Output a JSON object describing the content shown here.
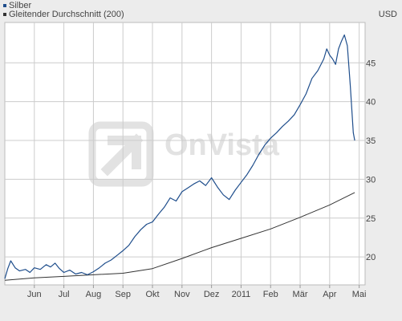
{
  "chart_data": {
    "type": "line",
    "currency": "USD",
    "watermark": "OnVista",
    "colors": {
      "silber": "#1f4e8c",
      "average": "#333333",
      "grid": "#cccccc",
      "plot_bg": "#ffffff",
      "bg": "#ececec",
      "watermark": "#e2e2e2"
    },
    "xlabels": [
      "Jun",
      "Jul",
      "Aug",
      "Sep",
      "Okt",
      "Nov",
      "Dez",
      "2011",
      "Feb",
      "Mär",
      "Apr",
      "Mai"
    ],
    "ylabels": [
      "20",
      "25",
      "30",
      "35",
      "40",
      "45"
    ],
    "yticks": [
      20,
      25,
      30,
      35,
      40,
      45
    ],
    "ylim": [
      16.4,
      50.2
    ],
    "xlim": [
      0,
      12.2
    ],
    "grid": true,
    "legend_position": "top-left",
    "series": [
      {
        "name": "Silber",
        "color": "#1f4e8c",
        "x": [
          0.0,
          0.1,
          0.2,
          0.35,
          0.5,
          0.7,
          0.85,
          1.0,
          1.2,
          1.4,
          1.55,
          1.7,
          1.85,
          2.0,
          2.2,
          2.4,
          2.6,
          2.8,
          3.0,
          3.2,
          3.4,
          3.6,
          3.8,
          4.0,
          4.2,
          4.4,
          4.6,
          4.8,
          5.0,
          5.2,
          5.4,
          5.6,
          5.8,
          6.0,
          6.2,
          6.4,
          6.6,
          6.8,
          7.0,
          7.2,
          7.4,
          7.6,
          7.8,
          8.0,
          8.2,
          8.4,
          8.6,
          8.8,
          9.0,
          9.2,
          9.4,
          9.6,
          9.8,
          10.0,
          10.2,
          10.4,
          10.6,
          10.8,
          10.9,
          11.0,
          11.1,
          11.2,
          11.3,
          11.4,
          11.5,
          11.6,
          11.7,
          11.8,
          11.85
        ],
        "values": [
          17.2,
          18.5,
          19.5,
          18.6,
          18.2,
          18.4,
          18.0,
          18.6,
          18.4,
          19.0,
          18.7,
          19.2,
          18.5,
          18.0,
          18.3,
          17.8,
          18.0,
          17.7,
          18.1,
          18.6,
          19.2,
          19.6,
          20.2,
          20.8,
          21.5,
          22.6,
          23.5,
          24.2,
          24.5,
          25.5,
          26.4,
          27.6,
          27.2,
          28.4,
          28.9,
          29.4,
          29.8,
          29.2,
          30.2,
          29.0,
          28.0,
          27.4,
          28.6,
          29.6,
          30.6,
          31.8,
          33.2,
          34.4,
          35.3,
          36.0,
          36.8,
          37.5,
          38.3,
          39.6,
          41.0,
          43.0,
          44.0,
          45.5,
          46.8,
          46.0,
          45.5,
          44.8,
          46.8,
          47.8,
          48.6,
          47.2,
          42.0,
          36.0,
          35.0
        ]
      },
      {
        "name": "Gleitender Durchschnitt (200)",
        "color": "#333333",
        "x": [
          0.0,
          1.0,
          2.0,
          3.0,
          4.0,
          5.0,
          6.0,
          7.0,
          8.0,
          9.0,
          10.0,
          11.0,
          11.85
        ],
        "values": [
          17.0,
          17.3,
          17.5,
          17.7,
          17.9,
          18.5,
          19.8,
          21.2,
          22.4,
          23.6,
          25.1,
          26.7,
          28.3
        ]
      }
    ]
  }
}
